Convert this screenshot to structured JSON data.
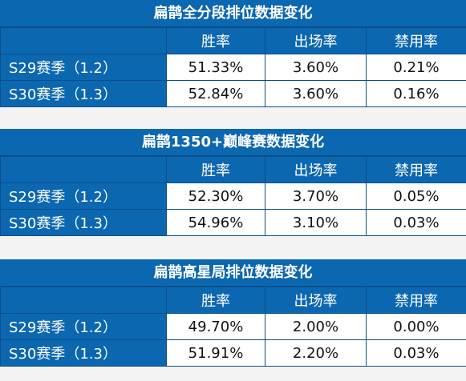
{
  "columns": [
    "胜率",
    "出场率",
    "禁用率"
  ],
  "sections": [
    {
      "title": "扁鹊全分段排位数据变化",
      "rows": [
        {
          "label": "S29赛季（1.2）",
          "values": [
            "51.33%",
            "3.60%",
            "0.21%"
          ]
        },
        {
          "label": "S30赛季（1.3）",
          "values": [
            "52.84%",
            "3.60%",
            "0.16%"
          ]
        }
      ]
    },
    {
      "title": "扁鹊1350+巅峰赛数据变化",
      "rows": [
        {
          "label": "S29赛季（1.2）",
          "values": [
            "52.30%",
            "3.70%",
            "0.05%"
          ]
        },
        {
          "label": "S30赛季（1.3）",
          "values": [
            "54.96%",
            "3.10%",
            "0.03%"
          ]
        }
      ]
    },
    {
      "title": "扁鹊高星局排位数据变化",
      "rows": [
        {
          "label": "S29赛季（1.2）",
          "values": [
            "49.70%",
            "2.00%",
            "0.00%"
          ]
        },
        {
          "label": "S30赛季（1.3）",
          "values": [
            "51.91%",
            "2.20%",
            "0.03%"
          ]
        }
      ]
    }
  ]
}
